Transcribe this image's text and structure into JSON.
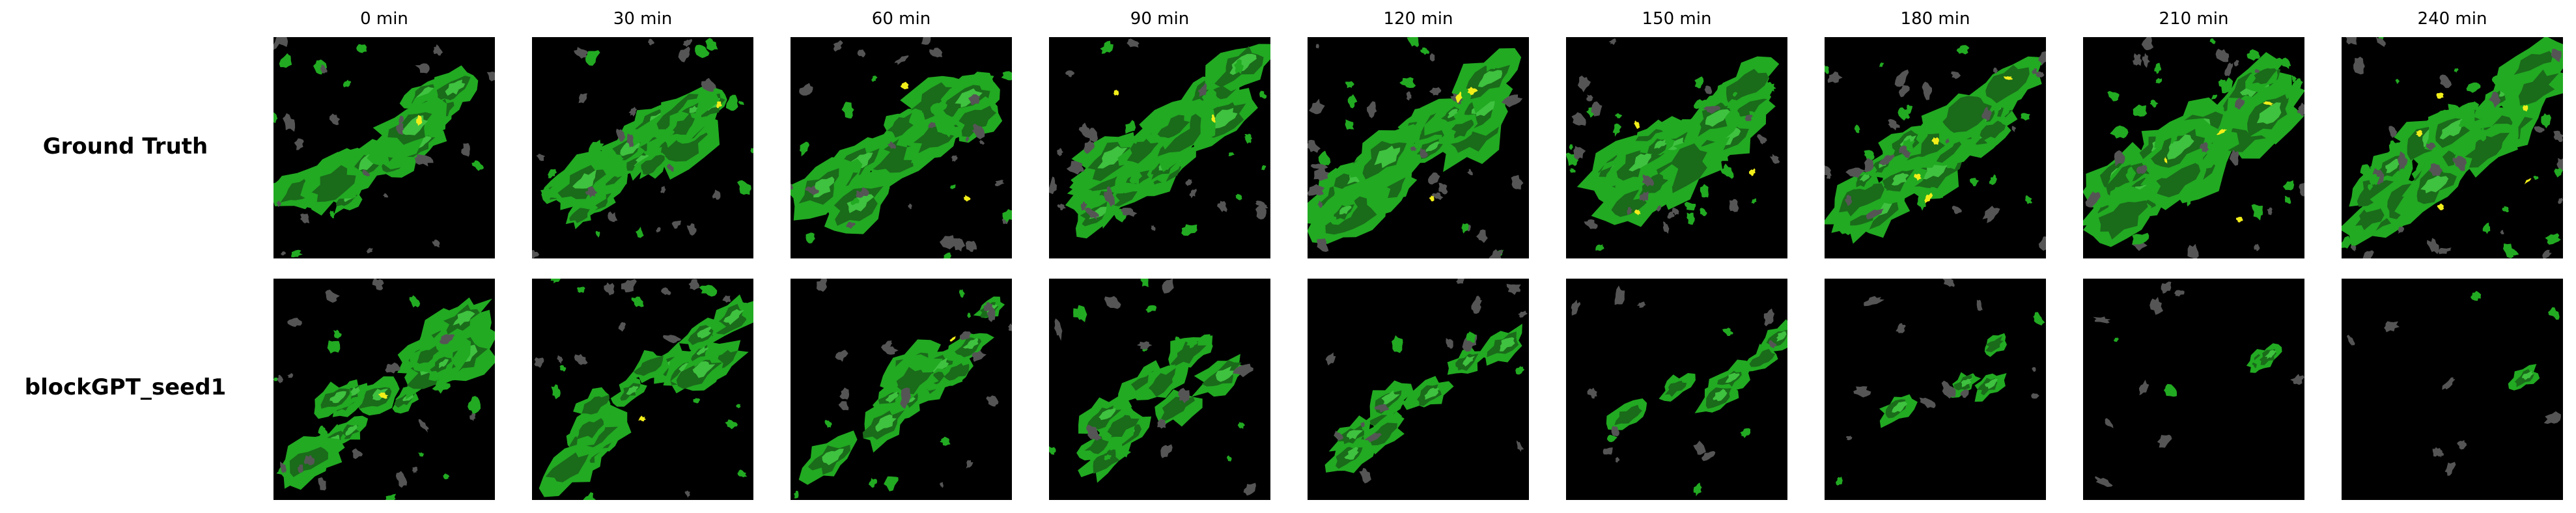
{
  "columns": [
    "0 min",
    "30 min",
    "60 min",
    "90 min",
    "120 min",
    "150 min",
    "180 min",
    "210 min",
    "240 min"
  ],
  "rows": [
    {
      "label": "Ground Truth"
    },
    {
      "label": "blockGPT_seed1"
    }
  ],
  "colors": {
    "background": "#000000",
    "low": "#555555",
    "light_green": "#22aa22",
    "mid_green": "#3fc23f",
    "dark_green": "#1a6b1a",
    "heavy": "#f2ee1a"
  }
}
